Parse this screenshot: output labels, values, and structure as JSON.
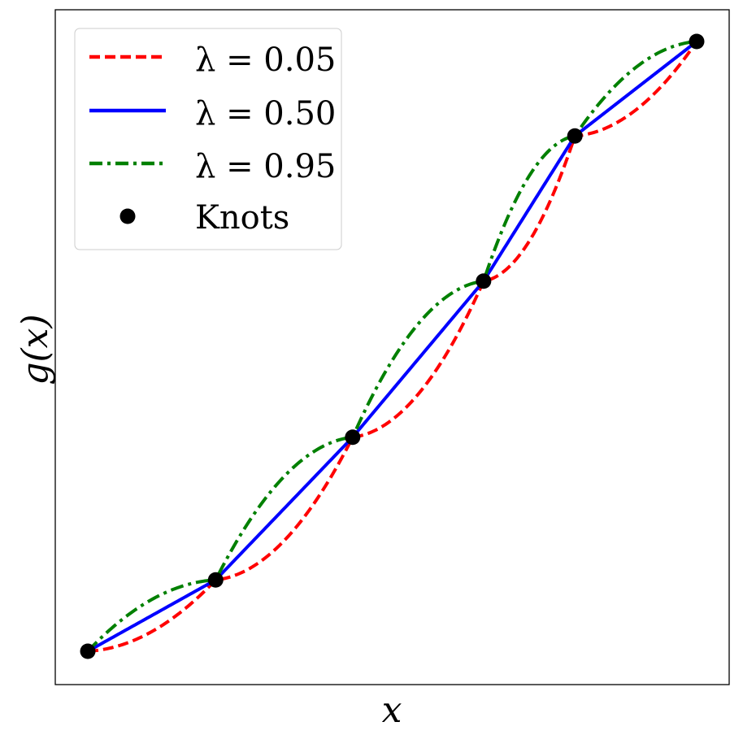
{
  "chart_data": {
    "type": "line",
    "title": "",
    "xlabel": "x",
    "ylabel": "g(x)",
    "x_ticks": [],
    "y_ticks": [],
    "grid": false,
    "legend_position": "top-left",
    "knots": {
      "name": "Knots",
      "x": [
        0.0,
        0.21,
        0.435,
        0.65,
        0.8,
        1.0
      ],
      "y": [
        0.0,
        0.117,
        0.351,
        0.607,
        0.845,
        1.0
      ]
    },
    "series": [
      {
        "name": "λ = 0.05",
        "lambda": 0.05,
        "color": "#ff0000",
        "style": "dashed"
      },
      {
        "name": "λ = 0.50",
        "lambda": 0.5,
        "color": "#0000ff",
        "style": "solid"
      },
      {
        "name": "λ = 0.95",
        "lambda": 0.95,
        "color": "#008000",
        "style": "dashdot"
      }
    ],
    "knot_color": "#000000"
  }
}
